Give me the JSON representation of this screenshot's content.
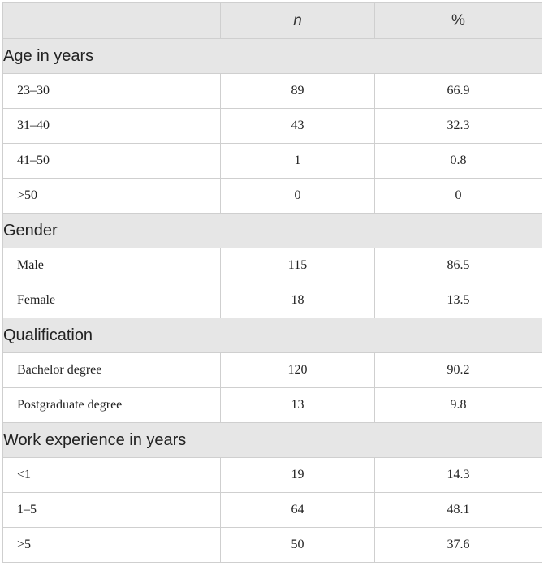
{
  "header": {
    "col1": "",
    "col2": "n",
    "col3": "%"
  },
  "sections": [
    {
      "title": "Age in years",
      "rows": [
        {
          "label": "23–30",
          "n": "89",
          "pct": "66.9"
        },
        {
          "label": "31–40",
          "n": "43",
          "pct": "32.3"
        },
        {
          "label": "41–50",
          "n": "1",
          "pct": "0.8"
        },
        {
          "label": ">50",
          "n": "0",
          "pct": "0"
        }
      ]
    },
    {
      "title": "Gender",
      "rows": [
        {
          "label": "Male",
          "n": "115",
          "pct": "86.5"
        },
        {
          "label": "Female",
          "n": "18",
          "pct": "13.5"
        }
      ]
    },
    {
      "title": "Qualification",
      "rows": [
        {
          "label": "Bachelor degree",
          "n": "120",
          "pct": "90.2"
        },
        {
          "label": "Postgraduate degree",
          "n": "13",
          "pct": "9.8"
        }
      ]
    },
    {
      "title": "Work experience in years",
      "rows": [
        {
          "label": "<1",
          "n": "19",
          "pct": "14.3"
        },
        {
          "label": "1–5",
          "n": "64",
          "pct": "48.1"
        },
        {
          "label": ">5",
          "n": "50",
          "pct": "37.6"
        }
      ]
    }
  ]
}
